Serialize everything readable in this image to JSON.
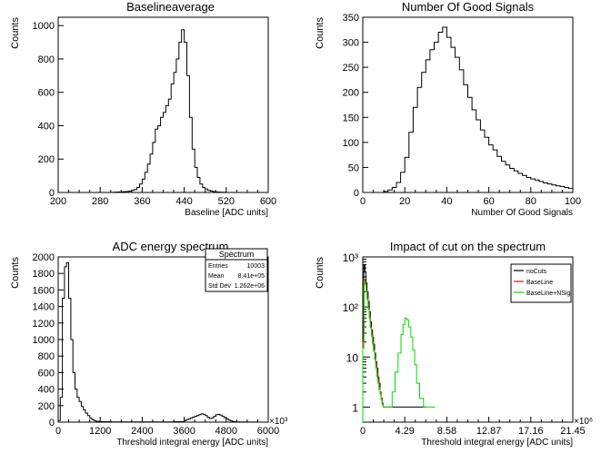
{
  "chart_data": [
    {
      "type": "histogram",
      "title": "Baselineaverage",
      "xlabel": "Baseline [ADC units]",
      "ylabel": "Counts",
      "xlim": [
        200,
        600
      ],
      "ylim": [
        0,
        1050
      ],
      "xticks": [
        "200",
        "280",
        "360",
        "440",
        "520",
        "600"
      ],
      "yticks": [
        "0",
        "200",
        "400",
        "600",
        "800",
        "1000"
      ],
      "series": [
        {
          "color": "#000000",
          "x": [
            300,
            305,
            310,
            315,
            320,
            325,
            330,
            335,
            340,
            345,
            350,
            355,
            360,
            365,
            370,
            375,
            380,
            385,
            390,
            395,
            400,
            405,
            410,
            415,
            420,
            425,
            430,
            435,
            440,
            445,
            450,
            455,
            460,
            465,
            470,
            475,
            480,
            485,
            490,
            495,
            500,
            505,
            510,
            515,
            520
          ],
          "values": [
            0,
            1,
            2,
            3,
            4,
            5,
            6,
            8,
            12,
            18,
            30,
            50,
            80,
            120,
            170,
            230,
            300,
            380,
            400,
            450,
            480,
            520,
            560,
            650,
            720,
            800,
            900,
            975,
            900,
            700,
            450,
            260,
            150,
            90,
            50,
            30,
            20,
            12,
            8,
            5,
            3,
            2,
            1,
            1,
            0
          ]
        }
      ]
    },
    {
      "type": "histogram",
      "title": "Number Of Good Signals",
      "xlabel": "Number Of Good Signals",
      "ylabel": "Counts",
      "xlim": [
        0,
        100
      ],
      "ylim": [
        0,
        350
      ],
      "xticks": [
        "0",
        "20",
        "40",
        "60",
        "80",
        "100"
      ],
      "yticks": [
        "0",
        "50",
        "100",
        "150",
        "200",
        "250",
        "300",
        "350"
      ],
      "series": [
        {
          "color": "#000000",
          "x": [
            10,
            12,
            14,
            16,
            18,
            20,
            22,
            24,
            26,
            28,
            30,
            32,
            34,
            36,
            38,
            40,
            42,
            44,
            46,
            48,
            50,
            52,
            54,
            56,
            58,
            60,
            62,
            64,
            66,
            68,
            70,
            72,
            74,
            76,
            78,
            80,
            82,
            84,
            86,
            88,
            90,
            92,
            94,
            96,
            98
          ],
          "values": [
            2,
            5,
            10,
            20,
            40,
            70,
            120,
            170,
            210,
            240,
            265,
            285,
            300,
            320,
            330,
            310,
            290,
            270,
            245,
            215,
            190,
            165,
            145,
            125,
            110,
            95,
            85,
            72,
            62,
            55,
            48,
            43,
            38,
            34,
            30,
            27,
            25,
            22,
            19,
            17,
            15,
            13,
            12,
            10,
            8
          ]
        }
      ]
    },
    {
      "type": "histogram",
      "title": "ADC energy spectrum",
      "xlabel": "Threshold integral energy [ADC units]",
      "ylabel": "Counts",
      "xlim": [
        0,
        6000
      ],
      "ylim": [
        0,
        2000
      ],
      "x_multiplier": "×10³",
      "xticks": [
        "0",
        "1200",
        "2400",
        "3600",
        "4800",
        "6000"
      ],
      "yticks": [
        "0",
        "200",
        "400",
        "600",
        "800",
        "1000",
        "1200",
        "1400",
        "1600",
        "1800",
        "2000"
      ],
      "stats_box": {
        "title": "Spectrum",
        "rows": [
          {
            "label": "Entries",
            "value": "10003"
          },
          {
            "label": "Mean",
            "value": "8.41e+05"
          },
          {
            "label": "Std Dev",
            "value": "1.262e+06"
          }
        ]
      },
      "series": [
        {
          "color": "#000000",
          "x": [
            0,
            60,
            120,
            180,
            240,
            300,
            360,
            420,
            480,
            540,
            600,
            660,
            720,
            780,
            840,
            900,
            960,
            1020,
            1080,
            1140,
            1200,
            1500,
            1800,
            2100,
            2400,
            2700,
            3000,
            3300,
            3600,
            3660,
            3720,
            3780,
            3840,
            3900,
            3960,
            4020,
            4080,
            4140,
            4200,
            4260,
            4320,
            4380,
            4440,
            4500,
            4560,
            4620,
            4680,
            4740,
            4800,
            4860,
            4920,
            4980,
            5040,
            5100,
            5400,
            5700
          ],
          "values": [
            20,
            300,
            1500,
            1880,
            1930,
            1500,
            1000,
            600,
            400,
            300,
            250,
            190,
            150,
            110,
            80,
            50,
            30,
            20,
            10,
            8,
            5,
            3,
            2,
            2,
            2,
            2,
            3,
            5,
            20,
            30,
            40,
            50,
            60,
            70,
            80,
            90,
            100,
            95,
            80,
            60,
            45,
            50,
            70,
            90,
            95,
            85,
            70,
            55,
            40,
            25,
            15,
            8,
            4,
            2,
            1,
            0
          ]
        }
      ]
    },
    {
      "type": "histogram",
      "title": "Impact of cut on the spectrum",
      "xlabel": "Threshold integral energy [ADC units]",
      "ylabel": "Counts",
      "xlim": [
        0,
        21.45
      ],
      "ylim": [
        0.5,
        1000
      ],
      "yscale": "log",
      "x_multiplier": "×10⁶",
      "xticks": [
        "0",
        "4.29",
        "8.58",
        "12.87",
        "17.16",
        "21.45"
      ],
      "yticks": [
        "1",
        "10",
        "10²",
        "10³"
      ],
      "legend": {
        "placement": "top-right",
        "entries": [
          {
            "name": "noCuts",
            "color": "#000000"
          },
          {
            "name": "BaseLine",
            "color": "#ff0000"
          },
          {
            "name": "BaseLine+NSig",
            "color": "#00dd00"
          }
        ]
      },
      "series": [
        {
          "name": "noCuts",
          "color": "#000000",
          "x": [
            0,
            0.11,
            0.22,
            0.33,
            0.44,
            0.55,
            0.66,
            0.77,
            0.88,
            0.99,
            1.1,
            1.21,
            1.32,
            1.43,
            1.54,
            1.65,
            1.76,
            1.87,
            1.98,
            2.09,
            2.2,
            2.5,
            3.0,
            3.5,
            4.0,
            4.5,
            5.0,
            5.5,
            6.0
          ],
          "values": [
            30,
            700,
            500,
            300,
            200,
            130,
            80,
            50,
            35,
            25,
            18,
            12,
            8,
            6,
            4,
            3,
            2,
            1.5,
            1.2,
            1,
            1,
            1,
            1,
            1,
            1,
            1,
            1,
            1,
            1
          ]
        },
        {
          "name": "BaseLine",
          "color": "#ff0000",
          "x": [
            0,
            0.11,
            0.22,
            0.33,
            0.44,
            0.55,
            0.66,
            0.77,
            0.88,
            0.99,
            1.1,
            1.21,
            1.32,
            1.43,
            1.54,
            1.65,
            1.76,
            1.87,
            1.98,
            2.09,
            2.2
          ],
          "values": [
            20,
            350,
            300,
            220,
            150,
            100,
            65,
            40,
            28,
            20,
            14,
            10,
            7,
            5,
            3.5,
            2.5,
            2,
            1.5,
            1.2,
            1,
            1
          ]
        },
        {
          "name": "BaseLine+NSig",
          "color": "#00dd00",
          "x": [
            0,
            0.11,
            0.22,
            0.33,
            0.44,
            0.55,
            0.66,
            0.77,
            0.88,
            0.99,
            1.1,
            1.21,
            1.32,
            1.43,
            1.54,
            1.65,
            1.76,
            1.87,
            1.98,
            2.09,
            2.2,
            2.5,
            3.0,
            3.3,
            3.6,
            3.9,
            4.1,
            4.3,
            4.5,
            4.7,
            4.9,
            5.1,
            5.3,
            5.5,
            5.8,
            6.2,
            6.6,
            7.0
          ],
          "values": [
            15,
            330,
            280,
            200,
            140,
            90,
            60,
            38,
            26,
            18,
            13,
            9,
            6,
            4,
            3,
            2.2,
            1.8,
            1.4,
            1.1,
            1,
            1,
            1,
            2,
            5,
            12,
            28,
            45,
            60,
            55,
            40,
            25,
            14,
            7,
            3,
            1.5,
            1,
            1,
            1
          ]
        }
      ]
    }
  ]
}
